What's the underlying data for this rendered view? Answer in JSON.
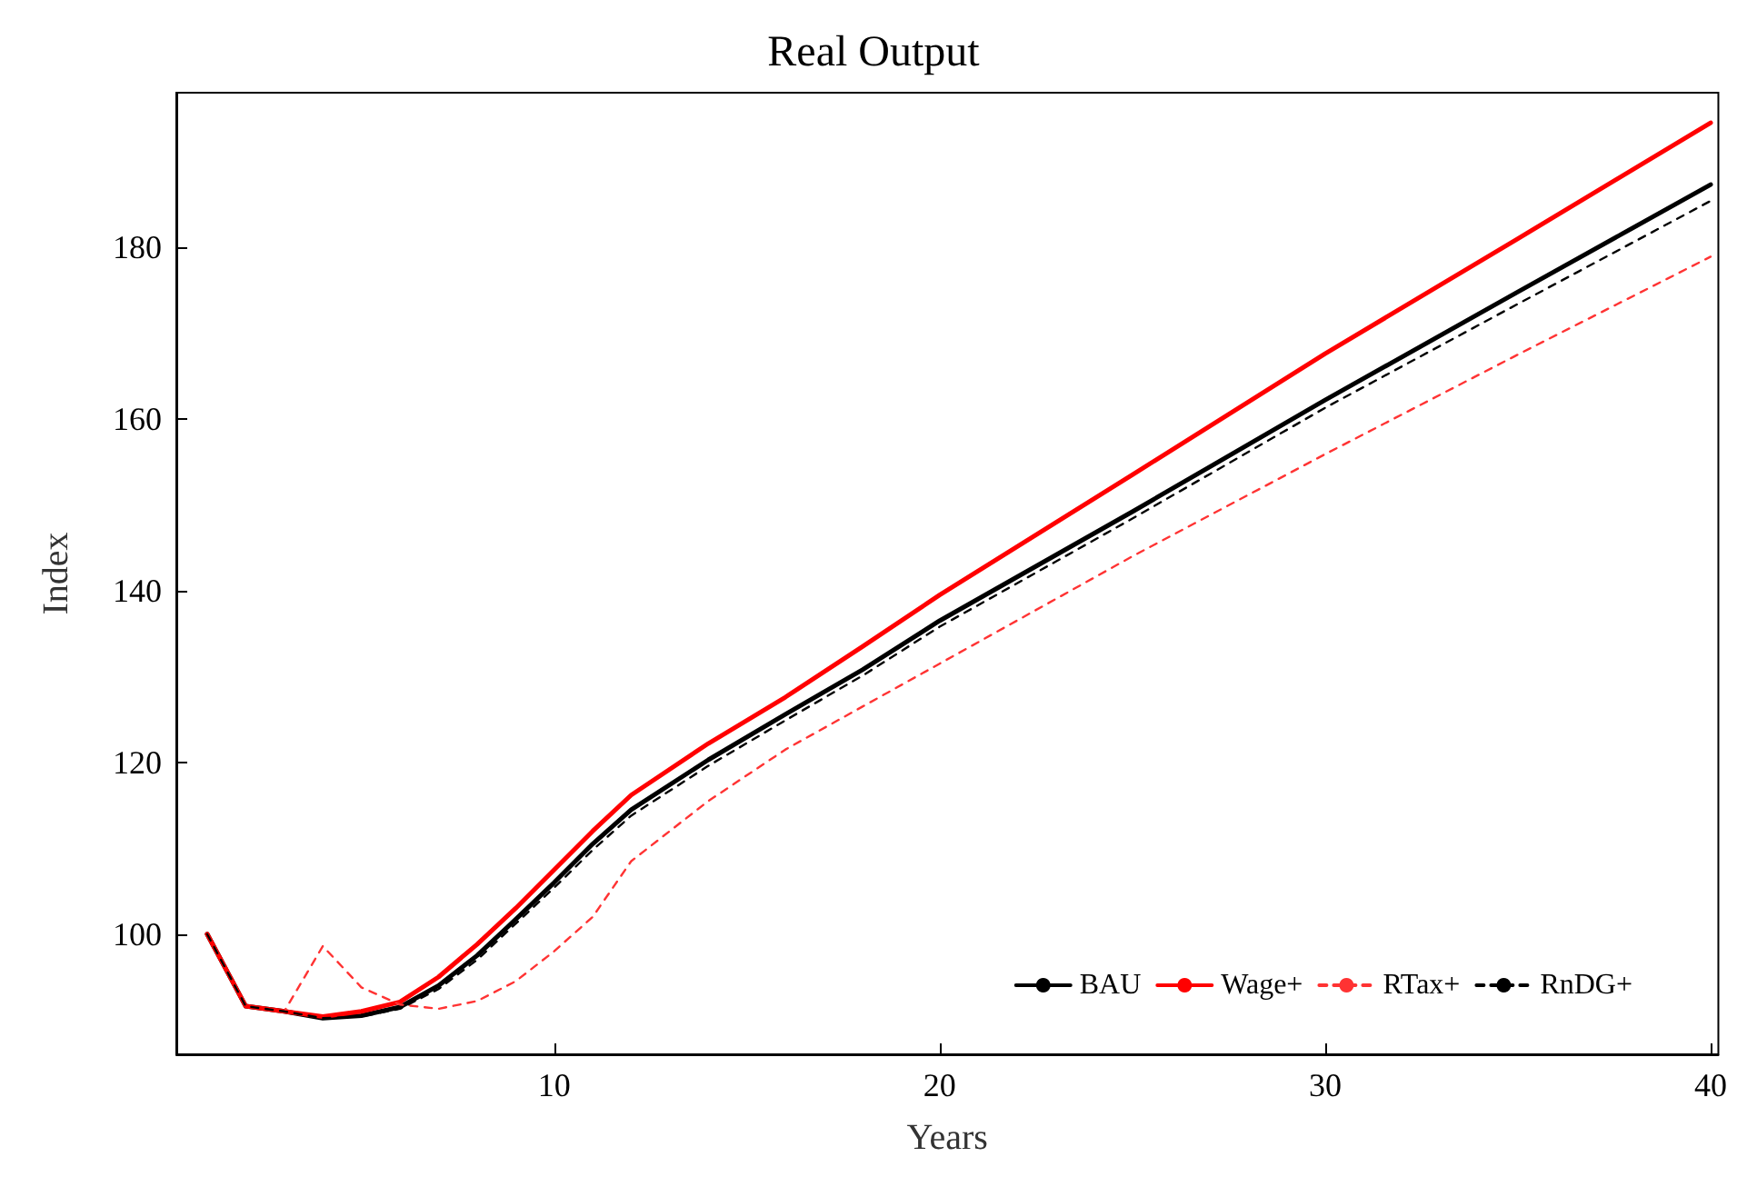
{
  "chart_data": {
    "type": "line",
    "title": "Real Output",
    "xlabel": "Years",
    "ylabel": "Index",
    "x": [
      1,
      2,
      3,
      4,
      5,
      6,
      7,
      8,
      9,
      10,
      11,
      12,
      14,
      16,
      18,
      20,
      25,
      30,
      35,
      40
    ],
    "series": [
      {
        "name": "BAU",
        "color": "#000000",
        "line_style": "solid",
        "values": [
          100,
          91.6,
          91,
          90.2,
          90.5,
          91.5,
          94,
          97.5,
          101.7,
          106,
          110.5,
          114.5,
          120.3,
          125.6,
          130.8,
          136.5,
          149.2,
          162.2,
          174.8,
          187.3
        ]
      },
      {
        "name": "Wage+",
        "color": "#ff0000",
        "line_style": "solid",
        "values": [
          100,
          91.6,
          91,
          90.4,
          91,
          92.1,
          95,
          98.8,
          103,
          107.5,
          112,
          116.2,
          122.2,
          127.6,
          133.5,
          139.5,
          153.5,
          167.6,
          181,
          194.5
        ]
      },
      {
        "name": "RTax+",
        "color": "#ff3333",
        "line_style": "dashed",
        "values": [
          100,
          91.6,
          91,
          98.6,
          93.8,
          91.8,
          91.3,
          92.2,
          94.5,
          98,
          102,
          108.5,
          115.5,
          121.5,
          126.5,
          131.5,
          144,
          155.9,
          167.5,
          178.9
        ]
      },
      {
        "name": "RnDG+",
        "color": "#000000",
        "line_style": "dashed",
        "values": [
          100,
          91.6,
          91,
          90.2,
          90.4,
          91.3,
          93.6,
          97,
          101.2,
          105.4,
          109.8,
          113.8,
          119.6,
          124.9,
          130.1,
          135.8,
          148.4,
          161.3,
          173.4,
          185.4
        ]
      }
    ],
    "xlim": [
      0.2,
      40.2
    ],
    "ylim": [
      86,
      198
    ],
    "xticks": [
      10,
      20,
      30,
      40
    ],
    "yticks": [
      100,
      120,
      140,
      160,
      180
    ],
    "grid": false,
    "legend": "bottom right",
    "marker": "none"
  }
}
